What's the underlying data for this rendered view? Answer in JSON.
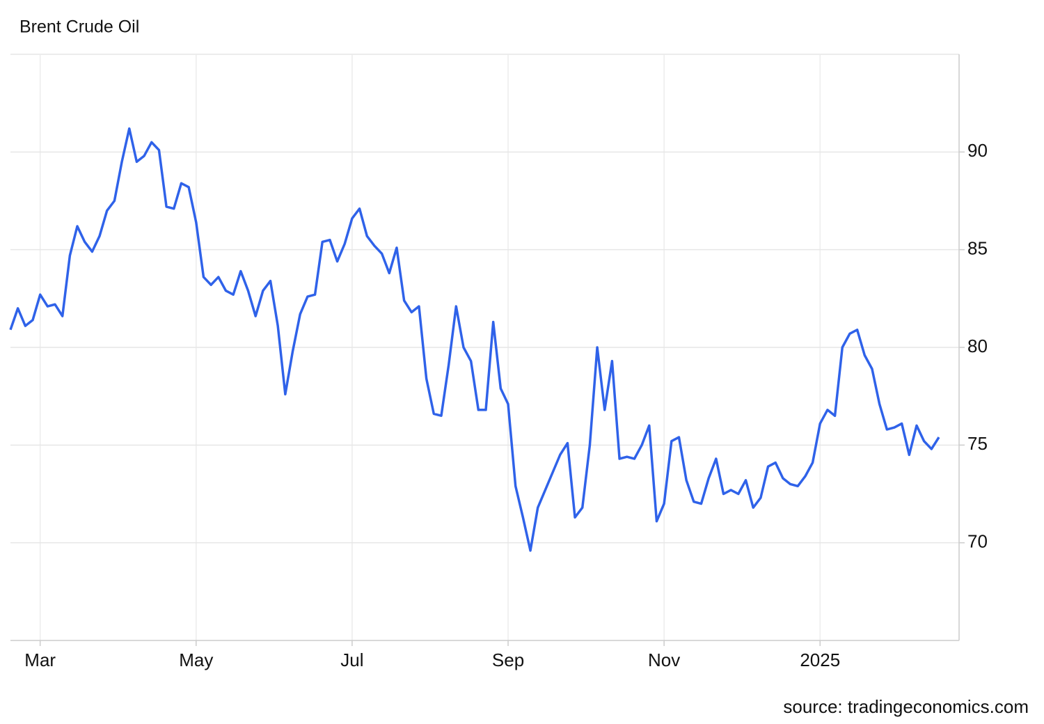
{
  "chart_data": {
    "type": "line",
    "title": "Brent Crude Oil",
    "source": "source: tradingeconomics.com",
    "categories": [
      null,
      null,
      null,
      null,
      "Mar",
      null,
      null,
      null,
      null,
      null,
      null,
      null,
      null,
      null,
      null,
      null,
      null,
      null,
      null,
      null,
      null,
      null,
      null,
      null,
      null,
      "May",
      null,
      null,
      null,
      null,
      null,
      null,
      null,
      null,
      null,
      null,
      null,
      null,
      null,
      null,
      null,
      null,
      null,
      null,
      null,
      null,
      "Jul",
      null,
      null,
      null,
      null,
      null,
      null,
      null,
      null,
      null,
      null,
      null,
      null,
      null,
      null,
      null,
      null,
      null,
      null,
      null,
      null,
      "Sep",
      null,
      null,
      null,
      null,
      null,
      null,
      null,
      null,
      null,
      null,
      null,
      null,
      null,
      null,
      null,
      null,
      null,
      null,
      null,
      null,
      "Nov",
      null,
      null,
      null,
      null,
      null,
      null,
      null,
      null,
      null,
      null,
      null,
      null,
      null,
      null,
      null,
      null,
      null,
      null,
      null,
      null,
      "2025",
      null,
      null,
      null,
      null,
      null,
      null,
      null,
      null,
      null,
      null,
      null,
      null,
      null,
      null,
      null,
      null
    ],
    "values": [
      80.9,
      82.0,
      81.1,
      81.4,
      82.7,
      82.1,
      82.2,
      81.6,
      84.7,
      86.2,
      85.4,
      84.9,
      85.7,
      87.0,
      87.5,
      89.5,
      91.2,
      89.5,
      89.8,
      90.5,
      90.1,
      87.2,
      87.1,
      88.4,
      88.2,
      86.4,
      83.6,
      83.2,
      83.6,
      82.9,
      82.7,
      83.9,
      82.9,
      81.6,
      82.9,
      83.4,
      81.1,
      77.6,
      79.8,
      81.7,
      82.6,
      82.7,
      85.4,
      85.5,
      84.4,
      85.3,
      86.6,
      87.1,
      85.7,
      85.2,
      84.8,
      83.8,
      85.1,
      82.4,
      81.8,
      82.1,
      78.4,
      76.6,
      76.5,
      79.1,
      82.1,
      80.0,
      79.3,
      76.8,
      76.8,
      81.3,
      77.9,
      77.1,
      72.9,
      71.3,
      69.6,
      71.8,
      72.7,
      73.6,
      74.5,
      75.1,
      71.3,
      71.8,
      75.0,
      80.0,
      76.8,
      79.3,
      74.3,
      74.4,
      74.3,
      75.0,
      76.0,
      71.1,
      72.0,
      75.2,
      75.4,
      73.2,
      72.1,
      72.0,
      73.3,
      74.3,
      72.5,
      72.7,
      72.5,
      73.2,
      71.8,
      72.3,
      73.9,
      74.1,
      73.3,
      73.0,
      72.9,
      73.4,
      74.1,
      76.1,
      76.8,
      76.5,
      80.0,
      80.7,
      80.9,
      79.6,
      78.9,
      77.1,
      75.8,
      75.9,
      76.1,
      74.5,
      76.0,
      75.2,
      74.8,
      75.4
    ],
    "color": "#2f62e9",
    "ylim": [
      65,
      95
    ],
    "yticks": [
      70,
      75,
      80,
      85,
      90
    ],
    "grid": true
  }
}
